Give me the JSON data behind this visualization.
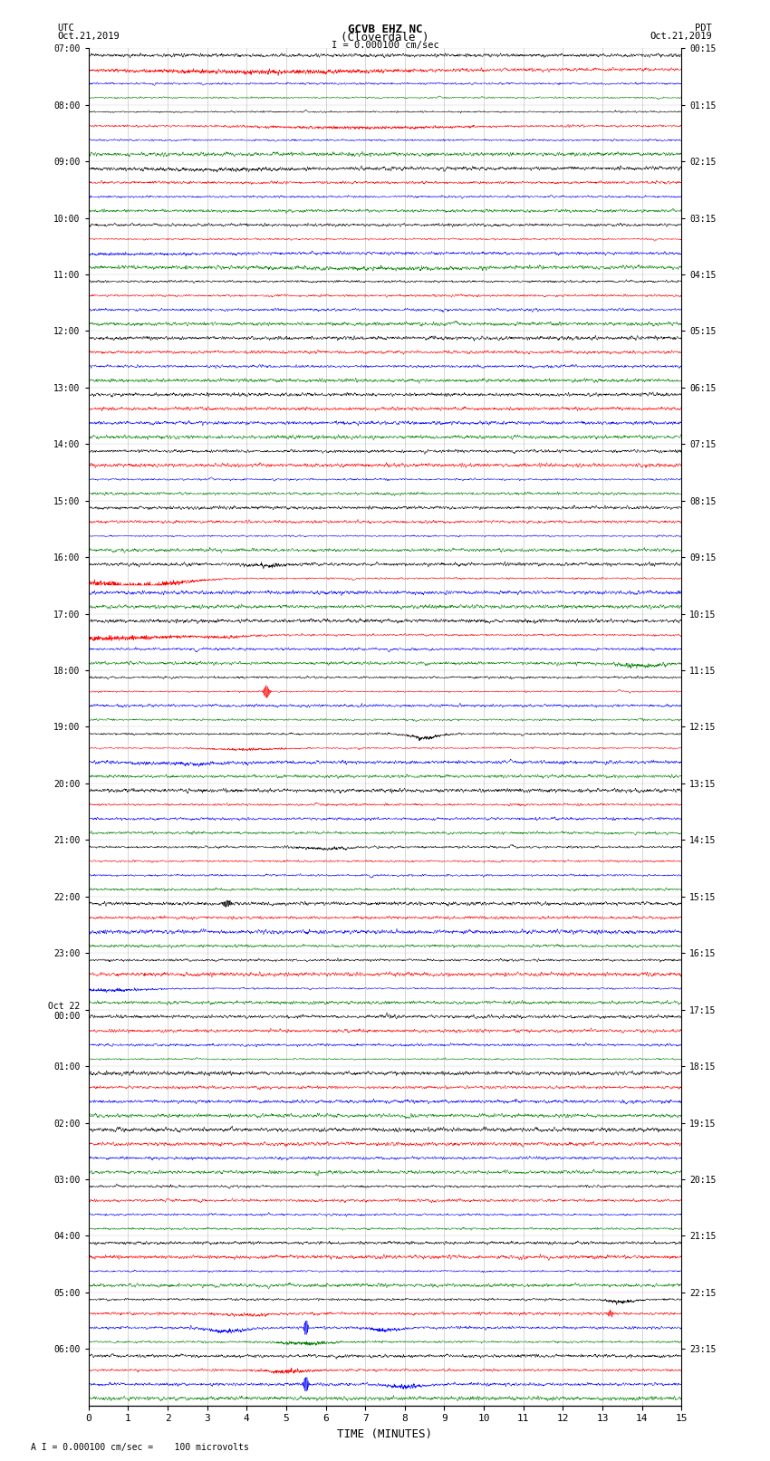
{
  "title_line1": "GCVB EHZ NC",
  "title_line2": "(Cloverdale )",
  "scale_label": "I = 0.000100 cm/sec",
  "bottom_label": "A I = 0.000100 cm/sec =    100 microvolts",
  "xlabel": "TIME (MINUTES)",
  "left_header_line1": "UTC",
  "left_header_line2": "Oct.21,2019",
  "right_header_line1": "PDT",
  "right_header_line2": "Oct.21,2019",
  "utc_times": [
    "07:00",
    "08:00",
    "09:00",
    "10:00",
    "11:00",
    "12:00",
    "13:00",
    "14:00",
    "15:00",
    "16:00",
    "17:00",
    "18:00",
    "19:00",
    "20:00",
    "21:00",
    "22:00",
    "23:00",
    "Oct 22\n00:00",
    "01:00",
    "02:00",
    "03:00",
    "04:00",
    "05:00",
    "06:00"
  ],
  "pdt_times": [
    "00:15",
    "01:15",
    "02:15",
    "03:15",
    "04:15",
    "05:15",
    "06:15",
    "07:15",
    "08:15",
    "09:15",
    "10:15",
    "11:15",
    "12:15",
    "13:15",
    "14:15",
    "15:15",
    "16:15",
    "17:15",
    "18:15",
    "19:15",
    "20:15",
    "21:15",
    "22:15",
    "23:15"
  ],
  "n_rows": 24,
  "n_traces": 4,
  "trace_colors": [
    "black",
    "red",
    "blue",
    "green"
  ],
  "x_ticks": [
    0,
    1,
    2,
    3,
    4,
    5,
    6,
    7,
    8,
    9,
    10,
    11,
    12,
    13,
    14,
    15
  ],
  "x_lim": [
    0,
    15
  ],
  "bg_color": "white",
  "grid_color": "#999999",
  "seed": 42
}
